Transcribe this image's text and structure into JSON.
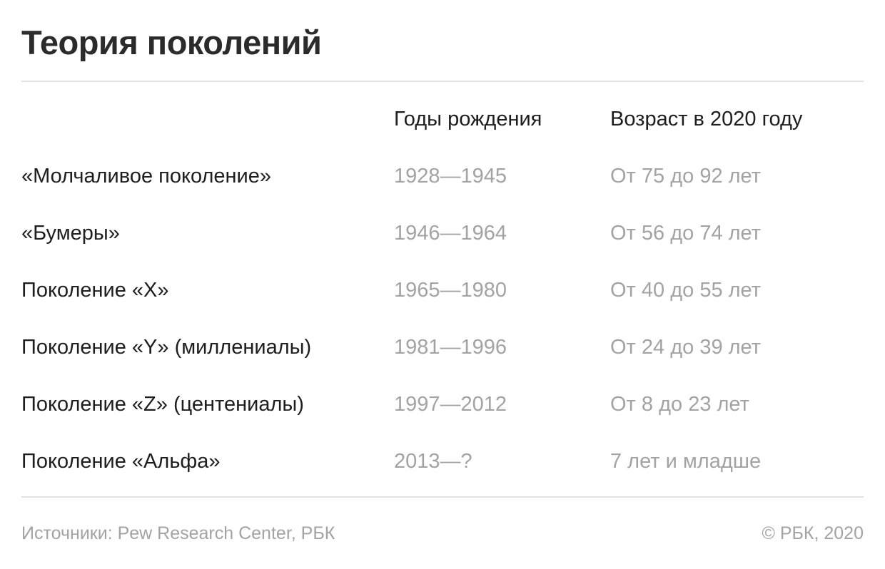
{
  "title": "Теория поколений",
  "columns": [
    "",
    "Годы рождения",
    "Возраст в 2020 году"
  ],
  "rows": [
    [
      "«Молчаливое поколение»",
      "1928—1945",
      "От 75 до 92 лет"
    ],
    [
      "«Бумеры»",
      "1946—1964",
      "От 56 до 74 лет"
    ],
    [
      "Поколение «X»",
      "1965—1980",
      "От 40 до 55 лет"
    ],
    [
      "Поколение «Y» (миллениалы)",
      "1981—1996",
      "От 24 до 39 лет"
    ],
    [
      "Поколение «Z» (центениалы)",
      "1997—2012",
      "От 8 до 23 лет"
    ],
    [
      "Поколение «Альфа»",
      "2013—?",
      "7 лет и младше"
    ]
  ],
  "footer": {
    "source": "Источники: Pew Research Center, РБК",
    "copyright": "© РБК, 2020"
  }
}
